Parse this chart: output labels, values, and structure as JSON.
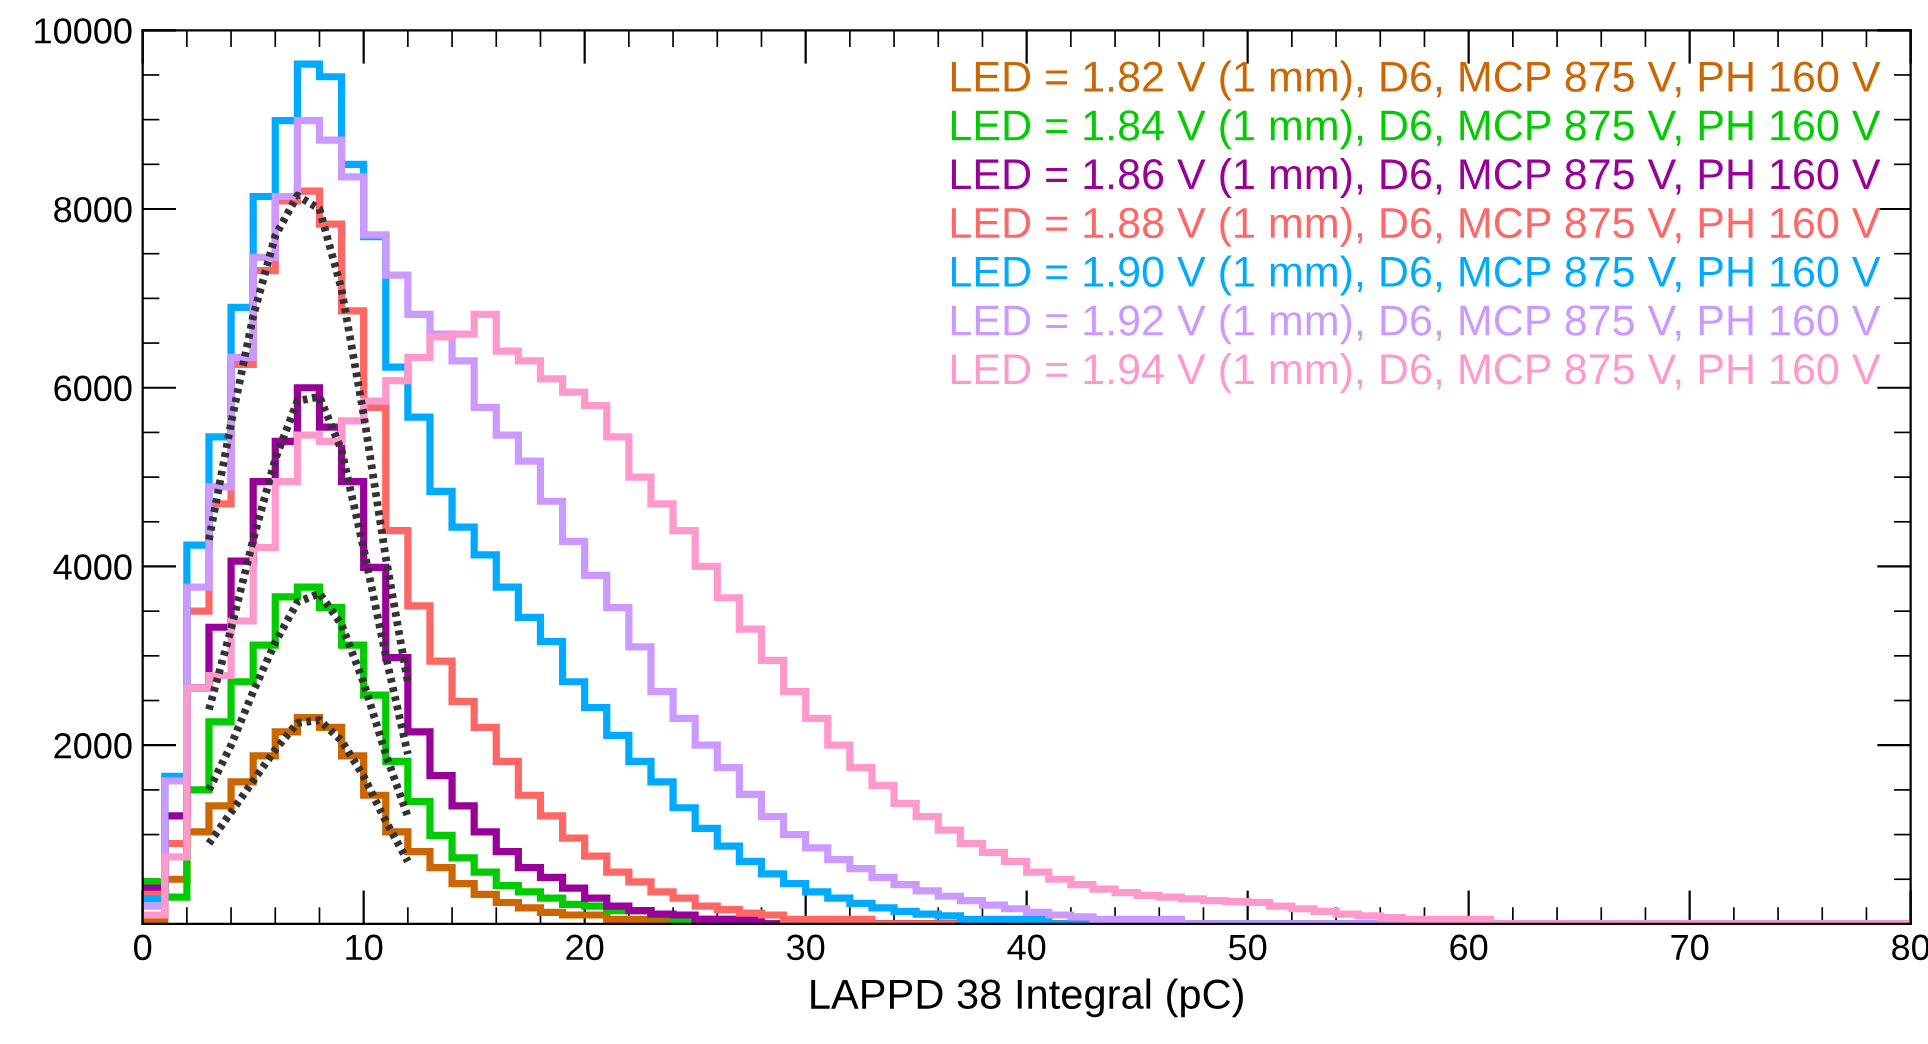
{
  "chart_data": {
    "type": "histogram",
    "xlabel": "LAPPD 38 Integral (pC)",
    "bins": [
      0,
      1,
      2,
      3,
      4,
      5,
      6,
      7,
      8,
      9,
      10,
      11,
      12,
      13,
      14,
      15,
      16,
      17,
      18,
      19,
      20,
      21,
      22,
      23,
      24,
      25,
      26,
      27,
      28,
      29,
      30,
      31,
      32,
      33,
      34,
      35,
      36,
      37,
      38,
      39,
      40,
      41,
      42,
      43,
      44,
      45,
      46,
      47,
      48,
      49,
      50,
      51,
      52,
      53,
      54,
      55,
      56,
      57,
      58,
      59,
      60,
      61,
      62,
      63,
      64,
      65,
      66,
      67,
      68,
      69,
      70,
      71,
      72,
      73,
      74,
      75,
      76,
      77,
      78,
      79,
      80
    ],
    "xlim": [
      0,
      80
    ],
    "xticks": [
      0,
      {
        "value": 2,
        "label": null
      },
      {
        "value": 4,
        "label": null
      },
      {
        "value": 6,
        "label": null
      },
      {
        "value": 8,
        "label": null
      },
      10,
      {
        "value": 12,
        "label": null
      },
      {
        "value": 14,
        "label": null
      },
      {
        "value": 16,
        "label": null
      },
      {
        "value": 18,
        "label": null
      },
      20,
      {
        "value": 22,
        "label": null
      },
      {
        "value": 24,
        "label": null
      },
      {
        "value": 26,
        "label": null
      },
      {
        "value": 28,
        "label": null
      },
      30,
      {
        "value": 32,
        "label": null
      },
      {
        "value": 34,
        "label": null
      },
      {
        "value": 36,
        "label": null
      },
      {
        "value": 38,
        "label": null
      },
      40,
      {
        "value": 42,
        "label": null
      },
      {
        "value": 44,
        "label": null
      },
      {
        "value": 46,
        "label": null
      },
      {
        "value": 48,
        "label": null
      },
      50,
      {
        "value": 52,
        "label": null
      },
      {
        "value": 54,
        "label": null
      },
      {
        "value": 56,
        "label": null
      },
      {
        "value": 58,
        "label": null
      },
      60,
      {
        "value": 62,
        "label": null
      },
      {
        "value": 64,
        "label": null
      },
      {
        "value": 66,
        "label": null
      },
      {
        "value": 68,
        "label": null
      },
      70,
      {
        "value": 72,
        "label": null
      },
      {
        "value": 74,
        "label": null
      },
      {
        "value": 76,
        "label": null
      },
      {
        "value": 78,
        "label": null
      },
      80
    ],
    "ylim": [
      0,
      10000
    ],
    "yticks": [
      {
        "value": 500,
        "label": null
      },
      {
        "value": 1000,
        "label": null
      },
      {
        "value": 1500,
        "label": null
      },
      2000,
      {
        "value": 2500,
        "label": null
      },
      {
        "value": 3000,
        "label": null
      },
      {
        "value": 3500,
        "label": null
      },
      4000,
      {
        "value": 4500,
        "label": null
      },
      {
        "value": 5000,
        "label": null
      },
      {
        "value": 5500,
        "label": null
      },
      6000,
      {
        "value": 6500,
        "label": null
      },
      {
        "value": 7000,
        "label": null
      },
      {
        "value": 7500,
        "label": null
      },
      8000,
      {
        "value": 8500,
        "label": null
      },
      {
        "value": 9000,
        "label": null
      },
      {
        "value": 9500,
        "label": null
      },
      10000
    ],
    "grid": false,
    "legend": "top right",
    "series": [
      {
        "name": "LED = 1.82 V (1 mm), D6, MCP 875 V, PH 160 V",
        "color": "#cc6600",
        "values": [
          50,
          500,
          1030,
          1320,
          1590,
          1880,
          2150,
          2310,
          2200,
          1880,
          1440,
          1030,
          810,
          630,
          450,
          330,
          240,
          180,
          130,
          100,
          100,
          50,
          50,
          50,
          0,
          0,
          0,
          0,
          0,
          0,
          0,
          0,
          0,
          0,
          0,
          0,
          0,
          0,
          0,
          0,
          0,
          0,
          0,
          0,
          0,
          0,
          0,
          0,
          0,
          0,
          0,
          0,
          0,
          0,
          0,
          0,
          0,
          0,
          0,
          0,
          0,
          0,
          0,
          0,
          0,
          0,
          0,
          0,
          0,
          0,
          0,
          0,
          0,
          0,
          0,
          0,
          0,
          0,
          0,
          0
        ]
      },
      {
        "name": "LED = 1.84 V (1 mm), D6, MCP 875 V, PH 160 V",
        "color": "#00cc00",
        "values": [
          470,
          300,
          1500,
          2260,
          2710,
          3120,
          3660,
          3770,
          3540,
          3120,
          2560,
          1820,
          1370,
          990,
          740,
          580,
          430,
          360,
          290,
          220,
          200,
          150,
          150,
          100,
          50,
          50,
          50,
          0,
          0,
          0,
          0,
          0,
          0,
          0,
          0,
          0,
          0,
          0,
          0,
          0,
          0,
          0,
          0,
          0,
          0,
          0,
          0,
          0,
          0,
          0,
          0,
          0,
          0,
          0,
          0,
          0,
          0,
          0,
          0,
          0,
          0,
          0,
          0,
          0,
          0,
          0,
          0,
          0,
          0,
          0,
          0,
          0,
          0,
          0,
          0,
          0,
          0,
          0,
          0,
          0
        ]
      },
      {
        "name": "LED = 1.86 V (1 mm), D6, MCP 875 V, PH 160 V",
        "color": "#990099",
        "values": [
          400,
          1210,
          2640,
          3320,
          4060,
          4950,
          5400,
          6000,
          5560,
          4950,
          3990,
          2980,
          2150,
          1660,
          1320,
          1030,
          810,
          630,
          520,
          400,
          290,
          200,
          150,
          110,
          100,
          50,
          50,
          50,
          0,
          0,
          0,
          0,
          0,
          0,
          0,
          0,
          0,
          0,
          0,
          0,
          0,
          0,
          0,
          0,
          0,
          0,
          0,
          0,
          0,
          0,
          0,
          0,
          0,
          0,
          0,
          0,
          0,
          0,
          0,
          0,
          0,
          0,
          0,
          0,
          0,
          0,
          0,
          0,
          0,
          0,
          0,
          0,
          0,
          0,
          0,
          0,
          0,
          0,
          0,
          0
        ]
      },
      {
        "name": "LED = 1.88 V (1 mm), D6, MCP 875 V, PH 160 V",
        "color": "#ff6666",
        "values": [
          330,
          900,
          3500,
          4700,
          6260,
          7310,
          8090,
          8200,
          7830,
          6860,
          5780,
          4400,
          3560,
          2940,
          2490,
          2200,
          1820,
          1440,
          1210,
          960,
          760,
          580,
          470,
          360,
          290,
          200,
          160,
          120,
          100,
          50,
          50,
          50,
          50,
          0,
          0,
          0,
          0,
          0,
          0,
          0,
          0,
          0,
          0,
          0,
          0,
          0,
          0,
          0,
          0,
          0,
          0,
          0,
          0,
          0,
          0,
          0,
          0,
          0,
          0,
          0,
          0,
          0,
          0,
          0,
          0,
          0,
          0,
          0,
          0,
          0,
          0,
          0,
          0,
          0,
          0,
          0,
          0,
          0,
          0,
          0
        ]
      },
      {
        "name": "LED = 1.90 V (1 mm), D6, MCP 875 V, PH 160 V",
        "color": "#00aaff",
        "values": [
          280,
          1650,
          4240,
          5450,
          6900,
          8140,
          8990,
          9620,
          9480,
          8500,
          7690,
          6230,
          5670,
          4840,
          4440,
          4130,
          3770,
          3430,
          3160,
          2710,
          2420,
          2110,
          1820,
          1590,
          1300,
          1070,
          870,
          700,
          560,
          450,
          360,
          290,
          230,
          180,
          140,
          110,
          90,
          50,
          50,
          50,
          50,
          0,
          0,
          0,
          0,
          0,
          0,
          0,
          0,
          0,
          0,
          0,
          0,
          0,
          0,
          0,
          0,
          0,
          0,
          0,
          0,
          0,
          0,
          0,
          0,
          0,
          0,
          0,
          0,
          0,
          0,
          0,
          0,
          0,
          0,
          0,
          0,
          0,
          0,
          0
        ]
      },
      {
        "name": "LED = 1.92 V (1 mm), D6, MCP 875 V, PH 160 V",
        "color": "#cc99ff",
        "values": [
          200,
          1600,
          3770,
          4890,
          6340,
          7460,
          8140,
          8990,
          8770,
          8360,
          7710,
          7260,
          6820,
          6600,
          6300,
          5780,
          5470,
          5180,
          4730,
          4280,
          3900,
          3540,
          3100,
          2600,
          2300,
          2000,
          1750,
          1450,
          1200,
          1000,
          850,
          720,
          620,
          520,
          440,
          370,
          310,
          260,
          210,
          170,
          130,
          100,
          80,
          50,
          50,
          50,
          50,
          0,
          0,
          0,
          0,
          0,
          0,
          0,
          0,
          0,
          0,
          0,
          0,
          0,
          0,
          0,
          0,
          0,
          0,
          0,
          0,
          0,
          0,
          0,
          0,
          0,
          0,
          0,
          0,
          0,
          0,
          0,
          0,
          0
        ]
      },
      {
        "name": "LED = 1.94 V (1 mm), D6, MCP 875 V, PH 160 V",
        "color": "#ff99cc",
        "values": [
          100,
          750,
          2640,
          2780,
          3390,
          4210,
          4950,
          5470,
          5400,
          5630,
          5850,
          6080,
          6340,
          6570,
          6600,
          6820,
          6410,
          6300,
          6100,
          5950,
          5800,
          5450,
          5000,
          4700,
          4400,
          4000,
          3650,
          3300,
          2950,
          2600,
          2300,
          2000,
          1750,
          1550,
          1350,
          1200,
          1050,
          900,
          800,
          700,
          580,
          500,
          440,
          390,
          350,
          320,
          300,
          280,
          260,
          250,
          240,
          200,
          170,
          140,
          110,
          90,
          70,
          50,
          50,
          50,
          50,
          0,
          0,
          0,
          0,
          0,
          0,
          0,
          0,
          0,
          0,
          0,
          0,
          0,
          0,
          0,
          0,
          0,
          0,
          0
        ]
      },
      {
        "type": "line",
        "color": "#333333",
        "line_style": "dotted",
        "x": [
          3,
          4,
          5,
          6,
          7,
          8,
          9,
          10,
          11,
          12
        ],
        "values": [
          900,
          1250,
          1600,
          1950,
          2250,
          2280,
          2050,
          1650,
          1150,
          700
        ]
      },
      {
        "type": "line",
        "color": "#333333",
        "line_style": "dotted",
        "x": [
          3,
          4,
          5,
          6,
          7,
          8,
          9,
          10,
          11,
          12
        ],
        "values": [
          1500,
          2000,
          2600,
          3150,
          3600,
          3700,
          3350,
          2700,
          1900,
          1200
        ]
      },
      {
        "type": "line",
        "color": "#333333",
        "line_style": "dotted",
        "x": [
          3,
          4,
          5,
          6,
          7,
          8,
          9,
          10,
          11,
          12
        ],
        "values": [
          2400,
          3300,
          4300,
          5200,
          5850,
          5900,
          5300,
          4200,
          3000,
          1900
        ]
      },
      {
        "type": "line",
        "color": "#333333",
        "line_style": "dotted",
        "x": [
          3,
          4,
          5,
          6,
          7,
          8,
          9,
          10,
          11,
          12
        ],
        "values": [
          4300,
          5600,
          6800,
          7700,
          8150,
          8000,
          7100,
          5700,
          4100,
          2700
        ]
      }
    ]
  }
}
